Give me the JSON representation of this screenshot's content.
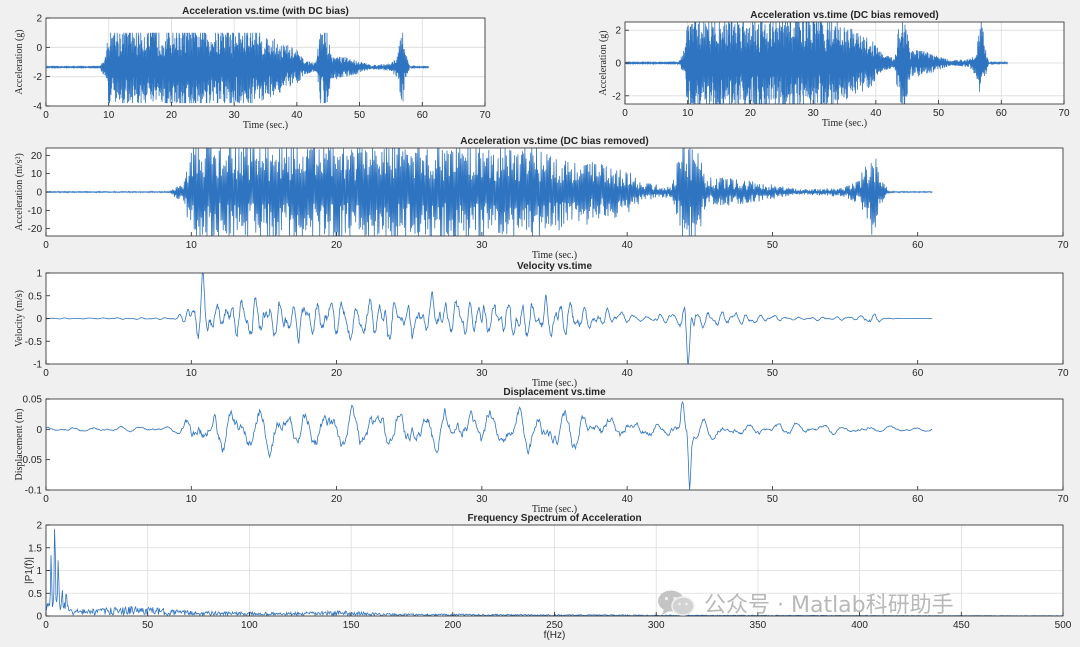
{
  "colors": {
    "figure_bg": "#f0f0f0",
    "axes_bg": "#ffffff",
    "line": "#2f74c0",
    "grid": "#dcdcdc",
    "axis": "#262626"
  },
  "watermark": {
    "icon": "wechat-icon",
    "text": "公众号 · Matlab科研助手"
  },
  "chart_data": [
    {
      "id": "acc-bias",
      "type": "line",
      "signal": "acc_bias",
      "title": "Acceleration vs.time (with DC bias)",
      "xlabel": "Time (sec.)",
      "ylabel": "Acceleration (g)",
      "xlim": [
        0,
        70
      ],
      "ylim": [
        -4,
        2
      ],
      "xticks": [
        0,
        10,
        20,
        30,
        40,
        50,
        60,
        70
      ],
      "yticks": [
        -4,
        -2,
        0,
        2
      ],
      "grid": true,
      "series": [
        {
          "x_range": [
            0,
            61
          ],
          "baseline": -1.35,
          "max": 1.0,
          "min": -3.8
        }
      ],
      "envelope": [
        [
          0,
          0
        ],
        [
          8.5,
          0
        ],
        [
          9.5,
          0.3
        ],
        [
          10,
          1
        ],
        [
          20,
          1
        ],
        [
          27,
          1
        ],
        [
          33,
          1
        ],
        [
          35,
          0.8
        ],
        [
          38,
          0.6
        ],
        [
          40,
          0.45
        ],
        [
          41,
          0.2
        ],
        [
          43,
          0.1
        ],
        [
          43.8,
          1
        ],
        [
          44.8,
          1
        ],
        [
          45.5,
          0.3
        ],
        [
          46.5,
          0.3
        ],
        [
          49,
          0.2
        ],
        [
          52,
          0.05
        ],
        [
          55,
          0.1
        ],
        [
          56,
          0.3
        ],
        [
          56.9,
          1
        ],
        [
          57.3,
          0.4
        ],
        [
          58,
          0.02
        ],
        [
          61,
          0
        ]
      ]
    },
    {
      "id": "acc-nobias",
      "type": "line",
      "signal": "acc",
      "title": "Acceleration vs.time (DC bias removed)",
      "xlabel": "Time (sec.)",
      "ylabel": "Acceleration (g)",
      "xlim": [
        0,
        70
      ],
      "ylim": [
        -2.5,
        2.5
      ],
      "xticks": [
        0,
        10,
        20,
        30,
        40,
        50,
        60,
        70
      ],
      "yticks": [
        -2,
        0,
        2
      ],
      "grid": true,
      "series": [
        {
          "x_range": [
            0,
            61
          ],
          "amplitude": 2.5
        }
      ],
      "envelope": [
        [
          0,
          0
        ],
        [
          8.5,
          0
        ],
        [
          9.5,
          0.3
        ],
        [
          10,
          1
        ],
        [
          20,
          1
        ],
        [
          27,
          1
        ],
        [
          33,
          1
        ],
        [
          35,
          0.8
        ],
        [
          38,
          0.6
        ],
        [
          40,
          0.45
        ],
        [
          41,
          0.2
        ],
        [
          43,
          0.1
        ],
        [
          43.8,
          1
        ],
        [
          44.8,
          1
        ],
        [
          45.5,
          0.3
        ],
        [
          46.5,
          0.3
        ],
        [
          49,
          0.2
        ],
        [
          52,
          0.05
        ],
        [
          55,
          0.1
        ],
        [
          56,
          0.3
        ],
        [
          56.9,
          1
        ],
        [
          57.3,
          0.4
        ],
        [
          58,
          0.02
        ],
        [
          61,
          0
        ]
      ]
    },
    {
      "id": "acc-ms2",
      "type": "line",
      "signal": "acc",
      "title": "Acceleration vs.time (DC bias removed)",
      "xlabel": "Time (sec.)",
      "ylabel": "Acceleration (m/s²)",
      "xlim": [
        0,
        70
      ],
      "ylim": [
        -24,
        24
      ],
      "xticks": [
        0,
        10,
        20,
        30,
        40,
        50,
        60,
        70
      ],
      "yticks": [
        -20,
        -10,
        0,
        10,
        20
      ],
      "grid": false,
      "series": [
        {
          "x_range": [
            0,
            61
          ],
          "amplitude": 24
        }
      ],
      "envelope": [
        [
          0,
          0
        ],
        [
          8.5,
          0
        ],
        [
          9.5,
          0.3
        ],
        [
          10,
          1
        ],
        [
          20,
          1
        ],
        [
          27,
          1
        ],
        [
          33,
          1
        ],
        [
          35,
          0.8
        ],
        [
          38,
          0.6
        ],
        [
          40,
          0.45
        ],
        [
          41,
          0.2
        ],
        [
          43,
          0.1
        ],
        [
          43.8,
          1
        ],
        [
          44.8,
          1
        ],
        [
          45.5,
          0.3
        ],
        [
          46.5,
          0.3
        ],
        [
          49,
          0.2
        ],
        [
          52,
          0.05
        ],
        [
          55,
          0.1
        ],
        [
          56,
          0.3
        ],
        [
          56.9,
          1
        ],
        [
          57.3,
          0.4
        ],
        [
          58,
          0.02
        ],
        [
          61,
          0
        ]
      ]
    },
    {
      "id": "velocity",
      "type": "line",
      "signal": "vel",
      "title": "Velocity vs.time",
      "xlabel": "Time (sec.)",
      "ylabel": "Velocity (m/s)",
      "xlim": [
        0,
        70
      ],
      "ylim": [
        -1,
        1
      ],
      "xticks": [
        0,
        10,
        20,
        30,
        40,
        50,
        60,
        70
      ],
      "yticks": [
        -1,
        -0.5,
        0,
        0.5,
        1
      ],
      "grid": false,
      "series": [
        {
          "x_range": [
            0,
            61
          ],
          "amplitude": 0.42,
          "peak_max": [
            10.8,
            0.75
          ],
          "peak_min": [
            44.2,
            -0.9
          ]
        }
      ],
      "envelope": [
        [
          0,
          0.02
        ],
        [
          9,
          0.05
        ],
        [
          10,
          0.8
        ],
        [
          11,
          0.9
        ],
        [
          30,
          1
        ],
        [
          36,
          0.8
        ],
        [
          39,
          0.3
        ],
        [
          41,
          0.12
        ],
        [
          43.5,
          0.3
        ],
        [
          44,
          0.9
        ],
        [
          45,
          0.4
        ],
        [
          47,
          0.3
        ],
        [
          49,
          0.2
        ],
        [
          52,
          0.06
        ],
        [
          56,
          0.1
        ],
        [
          57,
          0.35
        ],
        [
          57.5,
          0.1
        ],
        [
          58,
          0.02
        ],
        [
          61,
          0
        ]
      ]
    },
    {
      "id": "displacement",
      "type": "line",
      "signal": "disp",
      "title": "Displacement vs.time",
      "xlabel": "Time (sec.)",
      "ylabel": "Displacement (m)",
      "xlim": [
        0,
        70
      ],
      "ylim": [
        -0.1,
        0.05
      ],
      "xticks": [
        0,
        10,
        20,
        30,
        40,
        50,
        60,
        70
      ],
      "yticks": [
        -0.1,
        -0.05,
        0,
        0.05
      ],
      "grid": false,
      "series": [
        {
          "x_range": [
            0,
            61
          ],
          "amplitude": 0.03,
          "peak_max": [
            43.8,
            0.04
          ],
          "peak_min": [
            44.3,
            -0.085
          ]
        }
      ],
      "envelope": [
        [
          0,
          0.1
        ],
        [
          9,
          0.15
        ],
        [
          10,
          0.8
        ],
        [
          11,
          1
        ],
        [
          30,
          1
        ],
        [
          36,
          0.9
        ],
        [
          39,
          0.6
        ],
        [
          41,
          0.45
        ],
        [
          43,
          0.4
        ],
        [
          44,
          0.8
        ],
        [
          45,
          0.5
        ],
        [
          47,
          0.4
        ],
        [
          50,
          0.3
        ],
        [
          55,
          0.2
        ],
        [
          58,
          0.15
        ],
        [
          61,
          0.08
        ]
      ]
    },
    {
      "id": "spectrum",
      "type": "line",
      "signal": "spec",
      "title": "Frequency Spectrum of Acceleration",
      "xlabel": "f(Hz)",
      "ylabel": "|P1(f)|",
      "xlim": [
        0,
        500
      ],
      "ylim": [
        0,
        2
      ],
      "xticks": [
        0,
        50,
        100,
        150,
        200,
        250,
        300,
        350,
        400,
        450,
        500
      ],
      "yticks": [
        0,
        0.5,
        1,
        1.5,
        2
      ],
      "grid": true,
      "series": [
        {
          "x_range": [
            0,
            500
          ],
          "peaks": [
            [
              2.5,
              1.15
            ],
            [
              4.3,
              1.95
            ],
            [
              6,
              1.25
            ],
            [
              8,
              0.45
            ],
            [
              10,
              0.3
            ]
          ]
        }
      ]
    }
  ]
}
